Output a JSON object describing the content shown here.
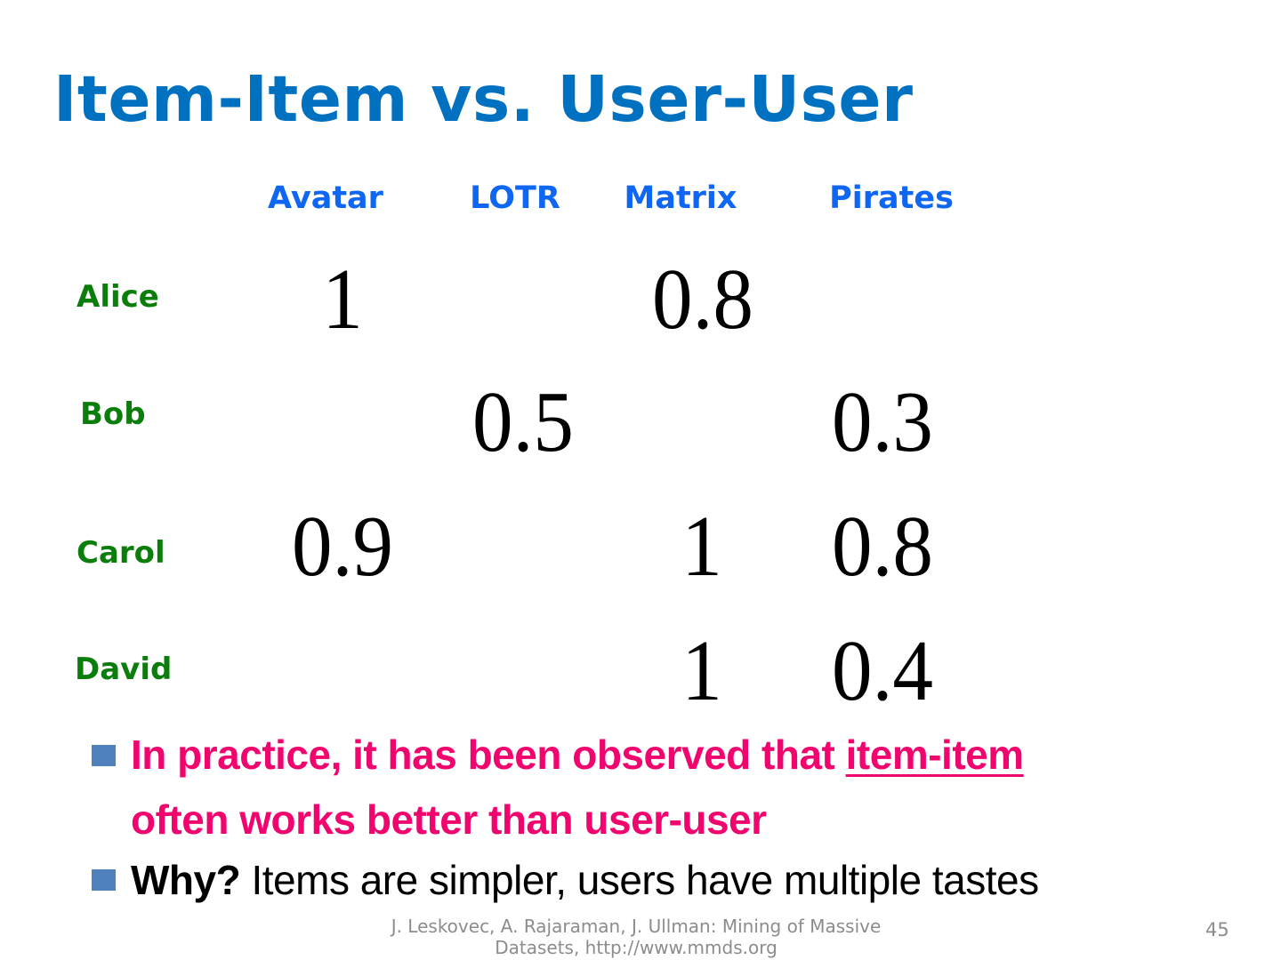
{
  "slide": {
    "title": "Item-Item vs. User-User",
    "columns": [
      "Avatar",
      "LOTR",
      "Matrix",
      "Pirates"
    ],
    "rows": [
      {
        "user": "Alice",
        "ratings": [
          "1",
          "",
          "0.8",
          ""
        ]
      },
      {
        "user": "Bob",
        "ratings": [
          "",
          "0.5",
          "",
          "0.3"
        ]
      },
      {
        "user": "Carol",
        "ratings": [
          "0.9",
          "",
          "1",
          "0.8"
        ]
      },
      {
        "user": "David",
        "ratings": [
          "",
          "",
          "1",
          "0.4"
        ]
      }
    ],
    "bullets": [
      {
        "text_before": "In practice, it has been observed that ",
        "underlined": "item-item",
        "line2": "often works better than user-user"
      },
      {
        "bold": "Why?",
        "text": " Items are simpler, users have multiple tastes"
      }
    ],
    "footer": "J. Leskovec, A. Rajaraman, J. Ullman: Mining of Massive Datasets, http://www.mmds.org",
    "page_number": "45"
  },
  "colors": {
    "title": "#0070c0",
    "column_headers": "#0f66f2",
    "row_headers": "#0a7d0a",
    "highlight": "#f0056f",
    "bullet": "#4f81bd"
  }
}
